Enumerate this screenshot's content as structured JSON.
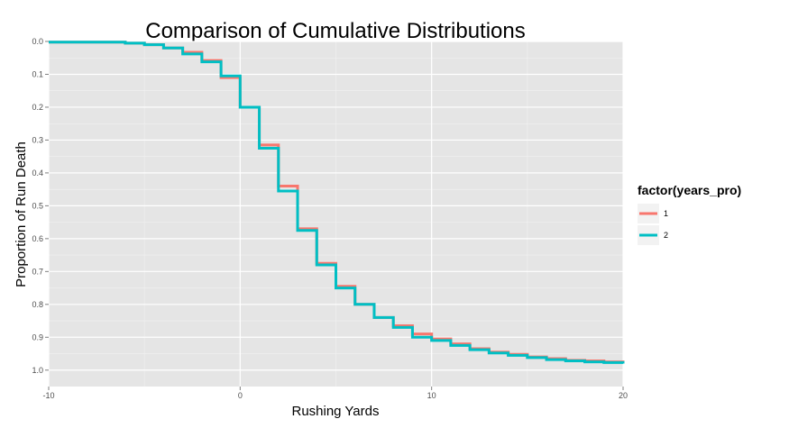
{
  "chart_data": {
    "type": "line",
    "step": true,
    "title": "Comparison of Cumulative Distributions",
    "xlabel": "Rushing Yards",
    "ylabel": "Proportion of Run Death",
    "xlim": [
      -10,
      20
    ],
    "ylim": [
      0,
      1.05
    ],
    "y_reversed": true,
    "x_ticks": [
      -10,
      0,
      10,
      20
    ],
    "x_tick_labels": [
      "-10",
      "0",
      "10",
      "20"
    ],
    "y_ticks": [
      0,
      0.1,
      0.2,
      0.3,
      0.4,
      0.5,
      0.6,
      0.7,
      0.8,
      0.9,
      1.0
    ],
    "y_tick_labels": [
      "0.0",
      "0.1",
      "0.2",
      "0.3",
      "0.4",
      "0.5",
      "0.6",
      "0.7",
      "0.8",
      "0.9",
      "1.0"
    ],
    "grid": true,
    "legend_title": "factor(years_pro)",
    "legend_position": "right",
    "series": [
      {
        "name": "1",
        "color": "#F8766D",
        "x": [
          -10,
          -6,
          -5,
          -4,
          -3,
          -2,
          -1,
          0,
          1,
          2,
          3,
          4,
          5,
          6,
          7,
          8,
          9,
          10,
          11,
          12,
          13,
          14,
          15,
          16,
          17,
          18,
          19,
          20
        ],
        "y": [
          0.002,
          0.005,
          0.01,
          0.02,
          0.033,
          0.058,
          0.11,
          0.2,
          0.315,
          0.44,
          0.57,
          0.675,
          0.745,
          0.8,
          0.84,
          0.865,
          0.89,
          0.905,
          0.92,
          0.935,
          0.945,
          0.952,
          0.96,
          0.965,
          0.97,
          0.972,
          0.975,
          0.98
        ]
      },
      {
        "name": "2",
        "color": "#00BFC4",
        "x": [
          -10,
          -6,
          -5,
          -4,
          -3,
          -2,
          -1,
          0,
          1,
          2,
          3,
          4,
          5,
          6,
          7,
          8,
          9,
          10,
          11,
          12,
          13,
          14,
          15,
          16,
          17,
          18,
          19,
          20
        ],
        "y": [
          0.002,
          0.005,
          0.01,
          0.02,
          0.038,
          0.062,
          0.105,
          0.2,
          0.325,
          0.455,
          0.575,
          0.68,
          0.75,
          0.8,
          0.84,
          0.87,
          0.9,
          0.91,
          0.925,
          0.938,
          0.948,
          0.955,
          0.962,
          0.968,
          0.972,
          0.975,
          0.977,
          0.98
        ]
      }
    ]
  }
}
